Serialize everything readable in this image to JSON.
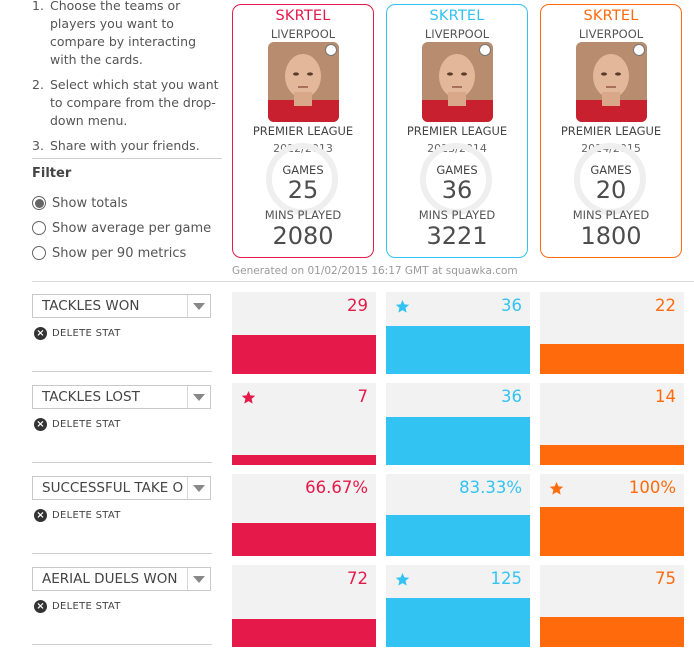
{
  "instructions": [
    {
      "num": "1.",
      "text": "Choose the teams or players you want to compare by interacting with the cards."
    },
    {
      "num": "2.",
      "text": "Select which stat you want to compare from the drop-down menu."
    },
    {
      "num": "3.",
      "text": "Share with your friends."
    }
  ],
  "filter": {
    "title": "Filter",
    "options": [
      {
        "label": "Show totals",
        "checked": true
      },
      {
        "label": "Show average per game",
        "checked": false
      },
      {
        "label": "Show per 90 metrics",
        "checked": false
      }
    ]
  },
  "cards": [
    {
      "name": "SKRTEL",
      "club": "LIVERPOOL",
      "league": "PREMIER LEAGUE",
      "season": "2012/2013",
      "games_label": "GAMES",
      "games": "25",
      "mins_label": "MINS PLAYED",
      "mins": "2080",
      "color": "#e6194b"
    },
    {
      "name": "SKRTEL",
      "club": "LIVERPOOL",
      "league": "PREMIER LEAGUE",
      "season": "2013/2014",
      "games_label": "GAMES",
      "games": "36",
      "mins_label": "MINS PLAYED",
      "mins": "3221",
      "color": "#33c3f2"
    },
    {
      "name": "SKRTEL",
      "club": "LIVERPOOL",
      "league": "PREMIER LEAGUE",
      "season": "2014/2015",
      "games_label": "GAMES",
      "games": "20",
      "mins_label": "MINS PLAYED",
      "mins": "1800",
      "color": "#ff6a0d"
    }
  ],
  "generated": "Generated on 01/02/2015 16:17 GMT at squawka.com",
  "delete_label": "DELETE STAT",
  "stats": [
    {
      "label": "TACKLES WON",
      "values": [
        {
          "text": "29",
          "fill": 0.47,
          "star": false
        },
        {
          "text": "36",
          "fill": 0.58,
          "star": true
        },
        {
          "text": "22",
          "fill": 0.36,
          "star": false
        }
      ]
    },
    {
      "label": "TACKLES LOST",
      "values": [
        {
          "text": "7",
          "fill": 0.12,
          "star": true
        },
        {
          "text": "36",
          "fill": 0.58,
          "star": false
        },
        {
          "text": "14",
          "fill": 0.24,
          "star": false
        }
      ]
    },
    {
      "label": "SUCCESSFUL TAKE O",
      "values": [
        {
          "text": "66.67%",
          "fill": 0.4,
          "star": false
        },
        {
          "text": "83.33%",
          "fill": 0.5,
          "star": false
        },
        {
          "text": "100%",
          "fill": 0.6,
          "star": true
        }
      ]
    },
    {
      "label": "AERIAL DUELS WON",
      "values": [
        {
          "text": "72",
          "fill": 0.34,
          "star": false
        },
        {
          "text": "125",
          "fill": 0.6,
          "star": true
        },
        {
          "text": "75",
          "fill": 0.36,
          "star": false
        }
      ]
    }
  ]
}
